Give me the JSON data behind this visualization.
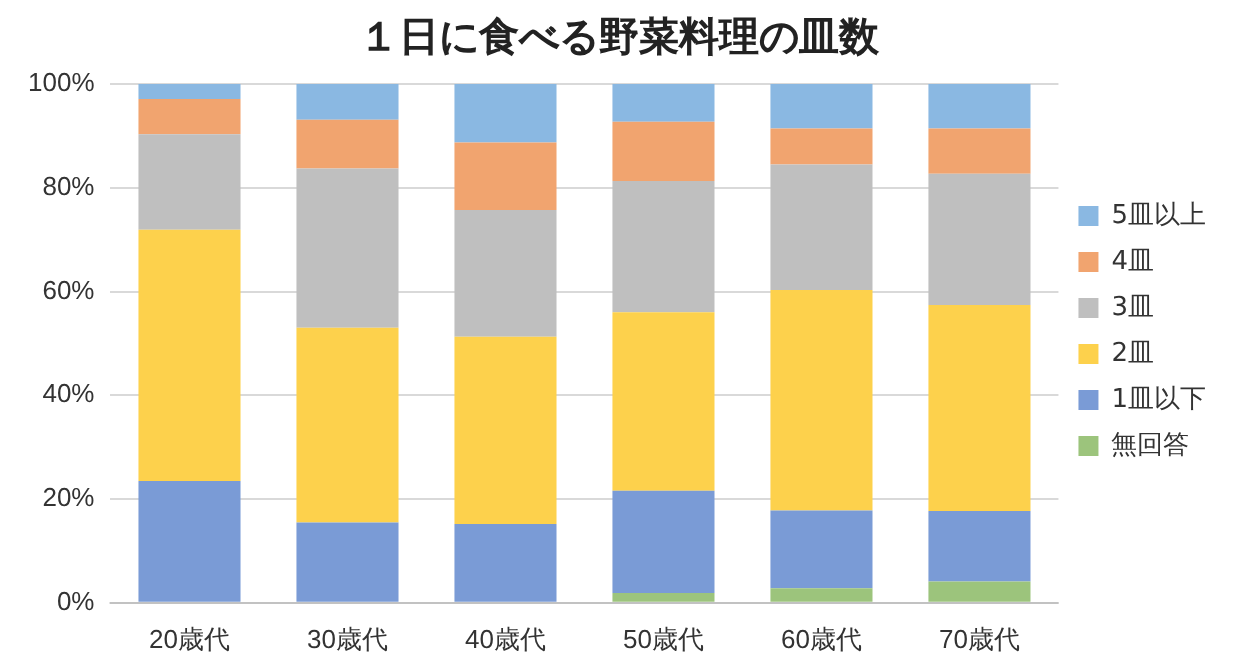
{
  "chart_data": {
    "type": "bar",
    "title": "１日に食べる野菜料理の皿数",
    "categories": [
      "20歳代",
      "30歳代",
      "40歳代",
      "50歳代",
      "60歳代",
      "70歳代"
    ],
    "stacked": true,
    "series": [
      {
        "name": "無回答",
        "color": "#9cc47c",
        "values": [
          0,
          0,
          0,
          1.9,
          2.8,
          4.1
        ]
      },
      {
        "name": "1皿以下",
        "color": "#7a9bd6",
        "values": [
          23.5,
          15.5,
          15.2,
          19.7,
          15.0,
          13.6
        ]
      },
      {
        "name": "2皿",
        "color": "#fdd14c",
        "values": [
          48.4,
          37.5,
          36.1,
          34.4,
          42.5,
          39.7
        ]
      },
      {
        "name": "3皿",
        "color": "#bfbfbf",
        "values": [
          18.4,
          30.7,
          24.4,
          25.3,
          24.2,
          25.3
        ]
      },
      {
        "name": "4皿",
        "color": "#f1a46f",
        "values": [
          6.8,
          9.4,
          13.0,
          11.4,
          6.9,
          8.7
        ]
      },
      {
        "name": "5皿以上",
        "color": "#8ab8e2",
        "values": [
          2.9,
          6.9,
          11.3,
          7.3,
          8.6,
          8.6
        ]
      }
    ],
    "ylim": [
      0,
      100
    ],
    "yticks": [
      {
        "value": 0,
        "label": "0%"
      },
      {
        "value": 20,
        "label": "20%"
      },
      {
        "value": 40,
        "label": "40%"
      },
      {
        "value": 60,
        "label": "60%"
      },
      {
        "value": 80,
        "label": "80%"
      },
      {
        "value": 100,
        "label": "100%"
      }
    ],
    "grid": "y",
    "legend": "right"
  }
}
